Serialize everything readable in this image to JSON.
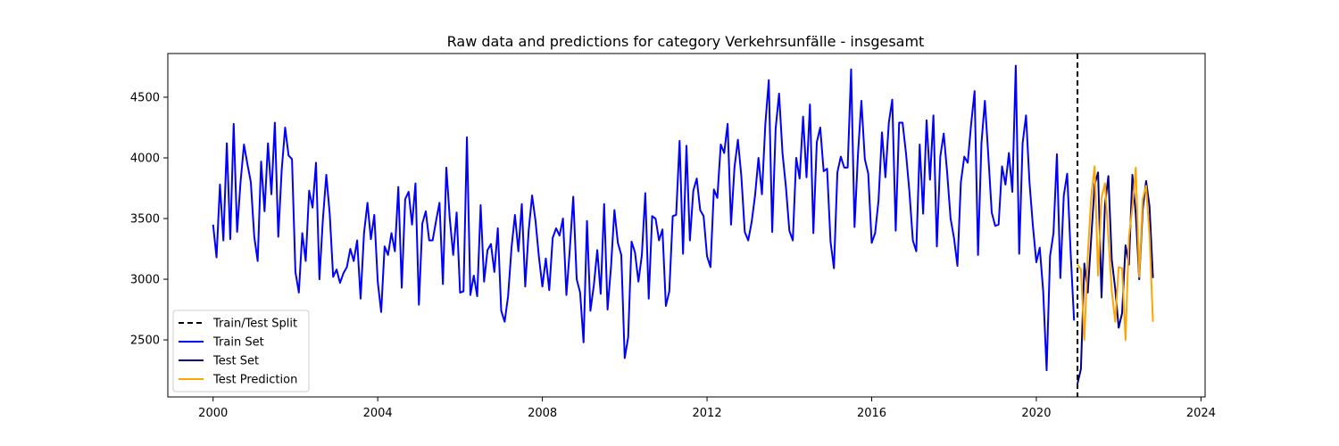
{
  "chart_data": {
    "type": "line",
    "title": "Raw data and predictions for category Verkehrsunfälle - insgesamt",
    "xlabel": "",
    "ylabel": "",
    "xlim": [
      1998.9,
      2024.1
    ],
    "ylim": [
      2030,
      4860
    ],
    "x_ticks": [
      2000,
      2004,
      2008,
      2012,
      2016,
      2020,
      2024
    ],
    "y_ticks": [
      2500,
      3000,
      3500,
      4000,
      4500
    ],
    "grid": false,
    "legend_position": "lower-left",
    "split_x": 2021.0,
    "split_label": "Train/Test Split",
    "series": [
      {
        "name": "Train Set",
        "color": "#0000ff",
        "x_start": 2000.0,
        "x_step": 0.083333,
        "values": [
          3450,
          3180,
          3780,
          3320,
          4120,
          3330,
          4280,
          3390,
          3800,
          4110,
          3950,
          3800,
          3350,
          3150,
          3970,
          3560,
          4120,
          3700,
          4290,
          3350,
          3900,
          4250,
          4020,
          3990,
          3060,
          2890,
          3380,
          3150,
          3730,
          3590,
          3960,
          3000,
          3490,
          3860,
          3540,
          3020,
          3080,
          2970,
          3050,
          3100,
          3250,
          3150,
          3320,
          2840,
          3380,
          3630,
          3330,
          3530,
          2980,
          2730,
          3270,
          3200,
          3380,
          3230,
          3760,
          2930,
          3660,
          3720,
          3450,
          3790,
          2790,
          3460,
          3560,
          3320,
          3320,
          3480,
          3630,
          2960,
          3920,
          3500,
          3200,
          3550,
          2890,
          2900,
          4170,
          2870,
          3030,
          2860,
          3610,
          2980,
          3240,
          3290,
          3060,
          3420,
          2740,
          2650,
          2860,
          3260,
          3530,
          3230,
          3620,
          2940,
          3400,
          3690,
          3480,
          3180,
          2940,
          3170,
          2910,
          3340,
          3420,
          3360,
          3500,
          2870,
          3250,
          3680,
          3000,
          2890,
          2480,
          3480,
          2740,
          2950,
          3240,
          2880,
          3620,
          2750,
          3100,
          3570,
          3300,
          3200,
          2350,
          2520,
          3310,
          3220,
          2980,
          3200,
          3710,
          2840,
          3520,
          3500,
          3320,
          3410,
          2780,
          2900,
          3520,
          3530,
          4140,
          3210,
          4100,
          3320,
          3730,
          3830,
          3570,
          3520,
          3190,
          3100,
          3740,
          3670,
          4110,
          4040,
          4280,
          3450,
          3920,
          4150,
          3850,
          3390,
          3320,
          3470,
          3690,
          4000,
          3700,
          4280,
          4640,
          3390,
          4240,
          4530,
          4040,
          3760,
          3400,
          3320,
          4000,
          3830,
          4340,
          3840,
          4440,
          3380,
          4130,
          4250,
          3890,
          3910,
          3310,
          3090,
          3880,
          4010,
          3920,
          3920,
          4730,
          3430,
          4030,
          4470,
          3990,
          3870,
          3300,
          3380,
          3650,
          4210,
          3840,
          4290,
          4480,
          3400,
          4290,
          4290,
          4040,
          3720,
          3320,
          3230,
          4110,
          3540,
          4310,
          3820,
          4350,
          3270,
          4010,
          4200,
          3880,
          3500,
          3340,
          3110,
          3800,
          4010,
          3960,
          4280,
          4550,
          3200,
          4120,
          4470,
          4020,
          3550,
          3440,
          3450,
          3930,
          3780,
          4040,
          3720,
          4760,
          3210,
          4120,
          4350,
          3800,
          3440,
          3140,
          3260,
          2900,
          2250,
          3190,
          3380,
          4030,
          3010,
          3690,
          3870,
          3220,
          2660
        ]
      },
      {
        "name": "Test Set",
        "color": "#00008b",
        "x_start": 2021.0,
        "x_step": 0.083333,
        "values": [
          2140,
          2260,
          3130,
          2890,
          3340,
          3780,
          3880,
          2850,
          3610,
          3850,
          3160,
          2920,
          2600,
          2720,
          3280,
          3120,
          3860,
          3530,
          3000,
          3570,
          3810,
          3600,
          3010
        ]
      },
      {
        "name": "Test Prediction",
        "color": "#ffa500",
        "x_start": 2021.0,
        "x_step": 0.083333,
        "values": [
          3120,
          3080,
          2500,
          3200,
          3680,
          3930,
          3030,
          3670,
          3790,
          3350,
          2900,
          2650,
          3100,
          3090,
          2500,
          3350,
          3590,
          3920,
          3020,
          3660,
          3770,
          3360,
          2650
        ]
      }
    ]
  }
}
